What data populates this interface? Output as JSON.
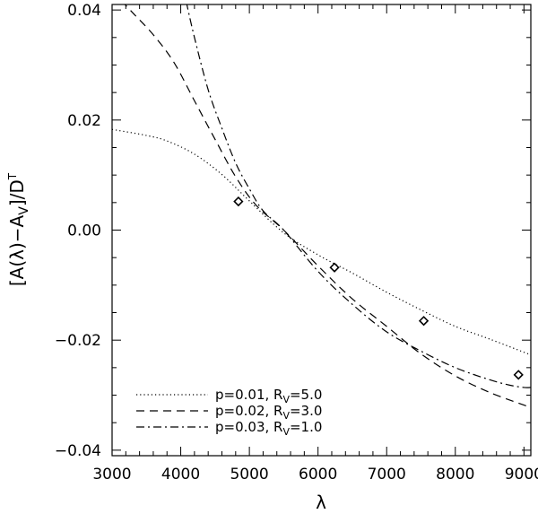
{
  "chart_data": {
    "type": "line",
    "xlabel": "λ",
    "ylabel": "[A(λ)−A_V]/D^T",
    "xlim": [
      3000,
      9100
    ],
    "ylim": [
      -0.041,
      0.041
    ],
    "x_ticks": [
      3000,
      4000,
      5000,
      6000,
      7000,
      8000,
      9000
    ],
    "x_tick_labels": [
      "3000",
      "4000",
      "5000",
      "6000",
      "7000",
      "8000",
      "9000"
    ],
    "y_ticks": [
      -0.04,
      -0.02,
      0.0,
      0.02,
      0.04
    ],
    "y_tick_labels": [
      "−0.04",
      "−0.02",
      "0.00",
      "0.02",
      "0.04"
    ],
    "grid": false,
    "legend_position": "bottom-left",
    "series": [
      {
        "name": "p=0.01, R_V=5.0",
        "style": "dotted",
        "x": [
          3000,
          3500,
          3800,
          4200,
          4600,
          5000,
          5500,
          6000,
          6500,
          7000,
          7500,
          8000,
          8500,
          9000,
          9100
        ],
        "y": [
          0.0183,
          0.0172,
          0.0162,
          0.0138,
          0.0101,
          0.0053,
          -0.0005,
          -0.0045,
          -0.0078,
          -0.0113,
          -0.0145,
          -0.0175,
          -0.0198,
          -0.0222,
          -0.0227
        ]
      },
      {
        "name": "p=0.02, R_V=3.0",
        "style": "dashed",
        "x": [
          3000,
          3300,
          3600,
          3900,
          4200,
          4500,
          4800,
          5100,
          5500,
          6000,
          6500,
          7000,
          7500,
          8000,
          8500,
          9000,
          9100
        ],
        "y": [
          0.0435,
          0.0395,
          0.0355,
          0.0305,
          0.0235,
          0.0165,
          0.0097,
          0.0045,
          0.0,
          -0.0065,
          -0.0125,
          -0.0175,
          -0.0225,
          -0.0265,
          -0.0295,
          -0.0318,
          -0.0322
        ]
      },
      {
        "name": "p=0.03, R_V=1.0",
        "style": "dash-dot",
        "x": [
          4080,
          4200,
          4400,
          4600,
          4800,
          5000,
          5200,
          5500,
          6000,
          6500,
          7000,
          7500,
          8000,
          8500,
          8800,
          9000,
          9100
        ],
        "y": [
          0.0415,
          0.035,
          0.0255,
          0.0185,
          0.0122,
          0.0075,
          0.0035,
          0.0,
          -0.0075,
          -0.0135,
          -0.0185,
          -0.022,
          -0.025,
          -0.0272,
          -0.0282,
          -0.0286,
          -0.0286
        ]
      }
    ],
    "points": {
      "marker": "diamond",
      "x": [
        4840,
        6240,
        7540,
        8920
      ],
      "y": [
        0.0052,
        -0.0068,
        -0.0165,
        -0.0263
      ]
    }
  }
}
